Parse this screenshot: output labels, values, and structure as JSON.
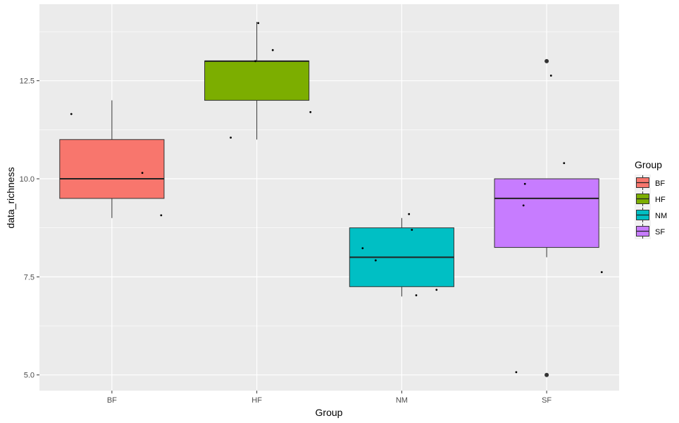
{
  "chart_data": {
    "type": "boxplot",
    "xlabel": "Group",
    "ylabel": "data_richness",
    "ylim": [
      4.6,
      14.45
    ],
    "y_ticks": [
      5.0,
      7.5,
      10.0,
      12.5
    ],
    "y_tick_labels": [
      "5.0",
      "7.5",
      "10.0",
      "12.5"
    ],
    "categories": [
      "BF",
      "HF",
      "NM",
      "SF"
    ],
    "grid": true,
    "legend": {
      "title": "Group",
      "placement": "right",
      "entries": [
        "BF",
        "HF",
        "NM",
        "SF"
      ]
    },
    "colors": {
      "BF": "#f8766d",
      "HF": "#7cae00",
      "NM": "#00bfc4",
      "SF": "#c77cff",
      "panel": "#ebebeb"
    },
    "boxes": [
      {
        "group": "BF",
        "whisker_low": 9.0,
        "q1": 9.5,
        "median": 10.0,
        "q3": 11.0,
        "whisker_high": 12.0,
        "outliers": []
      },
      {
        "group": "HF",
        "whisker_low": 11.0,
        "q1": 12.0,
        "median": 13.0,
        "q3": 13.0,
        "whisker_high": 14.0,
        "outliers": []
      },
      {
        "group": "NM",
        "whisker_low": 7.0,
        "q1": 7.25,
        "median": 8.0,
        "q3": 8.75,
        "whisker_high": 9.0,
        "outliers": []
      },
      {
        "group": "SF",
        "whisker_low": 8.0,
        "q1": 8.25,
        "median": 9.5,
        "q3": 10.0,
        "whisker_high": 10.0,
        "outliers": [
          13.0,
          5.0
        ]
      }
    ],
    "jitter_points": [
      {
        "group": "BF",
        "x": 0.72,
        "y": 11.65
      },
      {
        "group": "BF",
        "x": 1.21,
        "y": 10.15
      },
      {
        "group": "BF",
        "x": 1.34,
        "y": 9.07
      },
      {
        "group": "HF",
        "x": 1.82,
        "y": 11.05
      },
      {
        "group": "HF",
        "x": 2.01,
        "y": 13.97
      },
      {
        "group": "HF",
        "x": 1.99,
        "y": 13.0
      },
      {
        "group": "HF",
        "x": 2.11,
        "y": 13.28
      },
      {
        "group": "HF",
        "x": 2.37,
        "y": 11.7
      },
      {
        "group": "NM",
        "x": 2.73,
        "y": 8.23
      },
      {
        "group": "NM",
        "x": 2.82,
        "y": 7.92
      },
      {
        "group": "NM",
        "x": 3.05,
        "y": 9.1
      },
      {
        "group": "NM",
        "x": 3.07,
        "y": 8.7
      },
      {
        "group": "NM",
        "x": 3.1,
        "y": 7.03
      },
      {
        "group": "NM",
        "x": 3.24,
        "y": 7.17
      },
      {
        "group": "SF",
        "x": 3.79,
        "y": 5.07
      },
      {
        "group": "SF",
        "x": 3.84,
        "y": 9.32
      },
      {
        "group": "SF",
        "x": 3.85,
        "y": 9.87
      },
      {
        "group": "SF",
        "x": 4.03,
        "y": 12.63
      },
      {
        "group": "SF",
        "x": 4.12,
        "y": 10.4
      },
      {
        "group": "SF",
        "x": 4.38,
        "y": 7.62
      }
    ]
  }
}
